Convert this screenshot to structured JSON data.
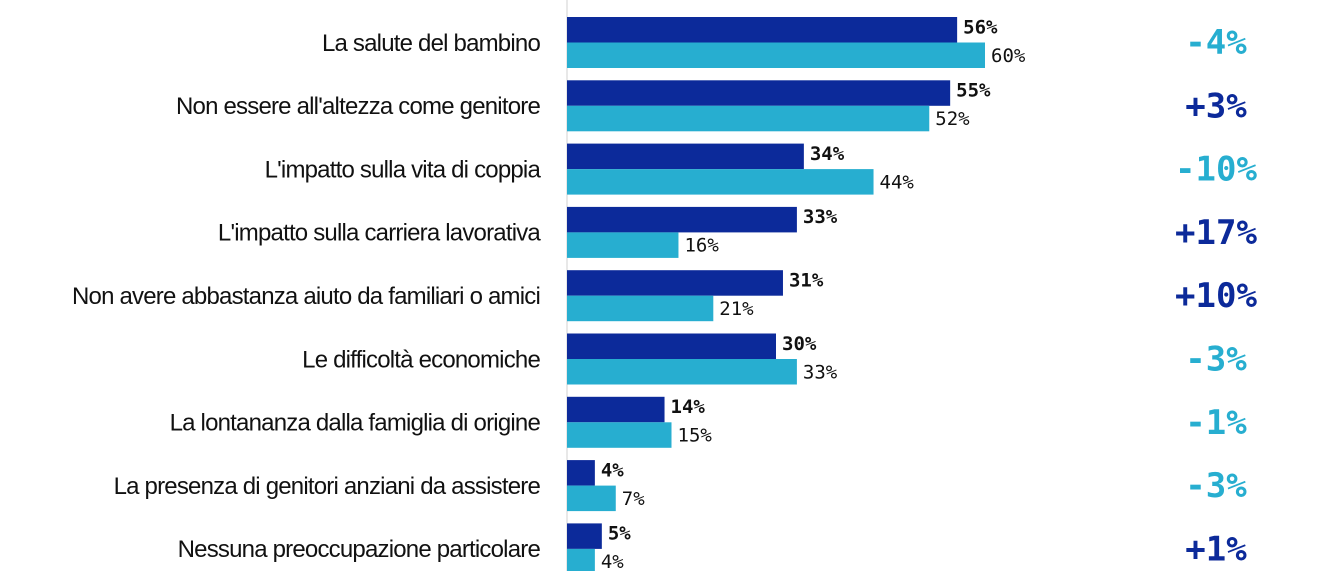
{
  "chart_data": {
    "type": "bar",
    "orientation": "horizontal",
    "categories": [
      "La salute del bambino",
      "Non essere all'altezza come genitore",
      "L'impatto sulla vita di coppia",
      "L'impatto sulla carriera lavorativa",
      "Non avere abbastanza aiuto da familiari o amici",
      "Le difficoltà economiche",
      "La lontananza dalla famiglia di origine",
      "La presenza di genitori anziani da assistere",
      "Nessuna preoccupazione particolare"
    ],
    "series": [
      {
        "color": "#0c2a9a",
        "values": [
          56,
          55,
          34,
          33,
          31,
          30,
          14,
          4,
          5
        ],
        "value_labels": [
          "56%",
          "55%",
          "34%",
          "33%",
          "31%",
          "30%",
          "14%",
          "4%",
          "5%"
        ]
      },
      {
        "color": "#27aed0",
        "values": [
          60,
          52,
          44,
          16,
          21,
          33,
          15,
          7,
          4
        ],
        "value_labels": [
          "60%",
          "52%",
          "44%",
          "16%",
          "21%",
          "33%",
          "15%",
          "7%",
          "4%"
        ]
      }
    ],
    "differences": [
      {
        "value": -4,
        "label": "-4%"
      },
      {
        "value": 3,
        "label": "+3%"
      },
      {
        "value": -10,
        "label": "-10%"
      },
      {
        "value": 17,
        "label": "+17%"
      },
      {
        "value": 10,
        "label": "+10%"
      },
      {
        "value": -3,
        "label": "-3%"
      },
      {
        "value": -1,
        "label": "-1%"
      },
      {
        "value": -3,
        "label": "-3%"
      },
      {
        "value": 1,
        "label": "+1%"
      }
    ],
    "positive_color": "#0c2a9a",
    "negative_color": "#27aed0",
    "xlim": [
      0,
      60
    ]
  }
}
